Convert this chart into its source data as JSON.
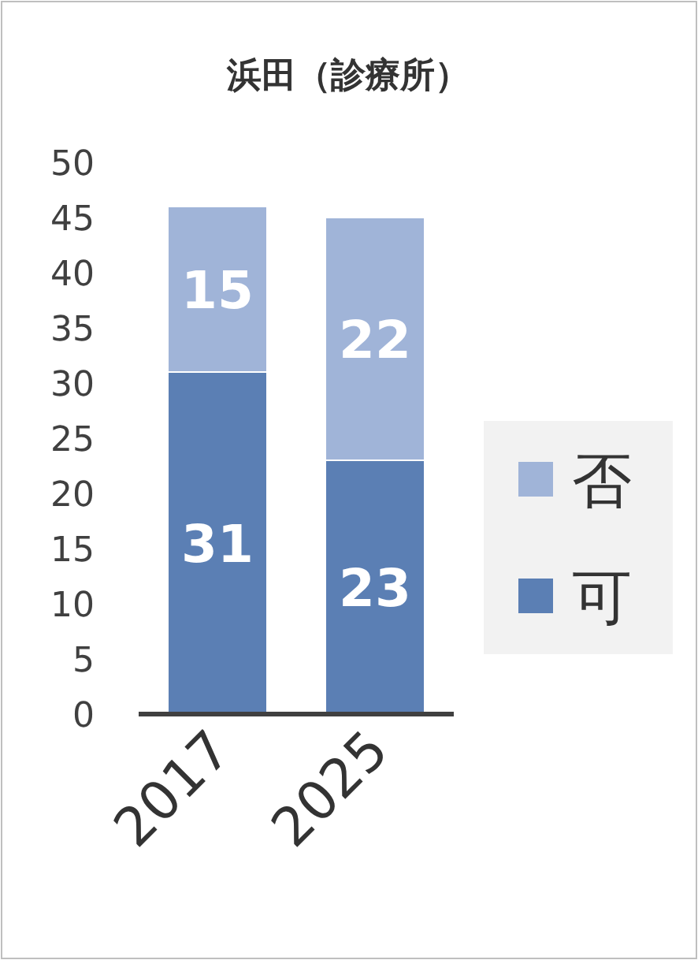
{
  "chart_data": {
    "type": "bar",
    "title": "浜田（診療所）",
    "categories": [
      "2017",
      "2025"
    ],
    "series": [
      {
        "name": "可",
        "color": "#5b7fb4",
        "values": [
          31,
          23
        ]
      },
      {
        "name": "否",
        "color": "#a0b4d8",
        "values": [
          15,
          22
        ]
      }
    ],
    "stacked": true,
    "ylim": [
      0,
      50
    ],
    "yticks": [
      0,
      5,
      10,
      15,
      20,
      25,
      30,
      35,
      40,
      45,
      50
    ],
    "data_labels": true,
    "legend": "right"
  }
}
